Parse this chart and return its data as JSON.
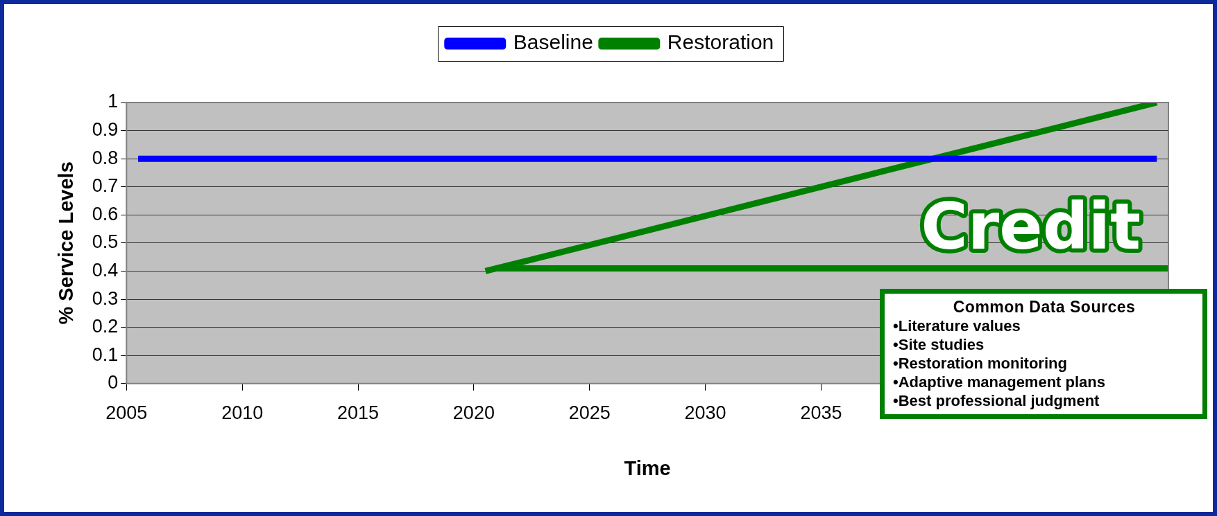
{
  "chart_data": {
    "type": "line",
    "xlabel": "Time",
    "ylabel": "% Service Levels",
    "xlim": [
      2005,
      2050
    ],
    "xticks": [
      2005,
      2010,
      2015,
      2020,
      2025,
      2030,
      2035
    ],
    "ylim": [
      0,
      1
    ],
    "yticks": [
      0,
      0.1,
      0.2,
      0.3,
      0.4,
      0.5,
      0.6,
      0.7,
      0.8,
      0.9,
      1
    ],
    "series": [
      {
        "name": "Baseline",
        "color": "#0000ff",
        "x": [
          2005.5,
          2049.5
        ],
        "values": [
          0.8,
          0.8
        ]
      },
      {
        "name": "Restoration",
        "color": "#008000",
        "x": [
          2020.5,
          2049.5
        ],
        "values": [
          0.4,
          1.0
        ]
      },
      {
        "color": "#008000",
        "x": [
          2021,
          2050
        ],
        "values": [
          0.41,
          0.41
        ]
      }
    ],
    "grid": "y",
    "legend": "top",
    "marker": "none",
    "annotations": [
      "Credit",
      "Common Data Sources",
      "•Literature values",
      "•Site studies",
      "•Restoration monitoring",
      "•Adaptive management plans",
      "•Best professional judgment"
    ]
  }
}
